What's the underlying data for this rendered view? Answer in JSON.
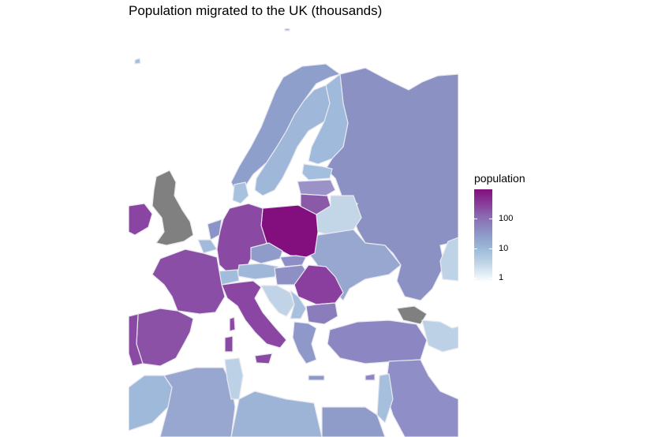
{
  "title": "Population migrated to the UK (thousands)",
  "legend": {
    "title": "population",
    "scale": "log",
    "ticks": [
      "100",
      "10",
      "1"
    ],
    "colors": {
      "high": "#810f7c",
      "mid": "#8c96c6",
      "low": "#f7fcfd",
      "no_data": "#808080",
      "border": "#e8e8f0"
    }
  },
  "map_data": {
    "shading_levels": {
      "Poland": "highest",
      "Romania": "high",
      "Ireland": "high",
      "Germany": "high",
      "Italy": "high",
      "France": "high",
      "Spain": "high",
      "Lithuania": "high",
      "Portugal": "high",
      "Bulgaria": "medium-high",
      "Latvia": "medium-high",
      "Greece": "medium",
      "Turkey": "medium",
      "Russia": "medium",
      "Netherlands": "medium",
      "Hungary": "medium",
      "Slovakia": "medium",
      "Czech Republic": "medium",
      "Ukraine": "medium",
      "Norway": "medium",
      "Sweden": "low-medium",
      "Finland": "low-medium",
      "Denmark": "low-medium",
      "Estonia": "low-medium",
      "Belgium": "low-medium",
      "Austria": "low-medium",
      "Switzerland": "low-medium",
      "Serbia": "low-medium",
      "Algeria": "low-medium",
      "Morocco": "low-medium",
      "Belarus": "low",
      "Tunisia": "low",
      "Croatia": "low",
      "Bosnia": "low",
      "Georgia": "no data",
      "United Kingdom": "no data"
    }
  }
}
